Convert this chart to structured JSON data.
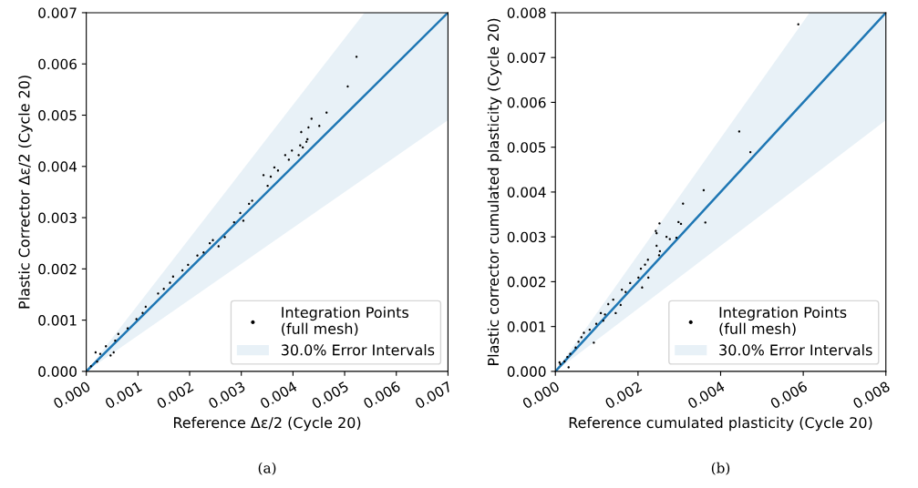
{
  "chart_data": [
    {
      "type": "scatter",
      "xlabel": "Reference Δε/2 (Cycle 20)",
      "ylabel": "Plastic Corrector Δε/2 (Cycle 20)",
      "annotations": [
        "(a)"
      ],
      "xlim": [
        0,
        0.007
      ],
      "ylim": [
        0,
        0.007
      ],
      "xticks": [
        {
          "value": 0,
          "label": "0.000"
        },
        0.001,
        0.002,
        0.003,
        0.004,
        0.005,
        0.006,
        0.007
      ],
      "yticks": [
        {
          "value": 0,
          "label": "0.000"
        },
        0.001,
        0.002,
        0.003,
        0.004,
        0.005,
        0.006,
        0.007
      ],
      "grid": false,
      "legend": "bottom right",
      "series": [
        {
          "type": "line",
          "name": "30.0% Error Intervals",
          "color": "#1f77b4",
          "x": [
            0,
            0.0035,
            0.005385,
            0.007
          ],
          "values": [
            0,
            0.0035,
            0.005385,
            0.007
          ],
          "lower": [
            0,
            0.00245,
            0.00377,
            0.0049
          ],
          "upper": [
            0,
            0.00455,
            0.007,
            0.007
          ]
        },
        {
          "name": "Integration Points\n(full mesh)",
          "color": "#000000",
          "marker": "circle",
          "x": [
            0.00523,
            0.00506,
            0.00465,
            0.00436,
            0.0043,
            0.00451,
            0.00416,
            0.00428,
            0.00426,
            0.00414,
            0.00419,
            0.00385,
            0.00398,
            0.00392,
            0.00411,
            0.00364,
            0.00371,
            0.00343,
            0.00357,
            0.00351,
            0.00304,
            0.00315,
            0.00298,
            0.00268,
            0.00256,
            0.00245,
            0.00227,
            0.00215,
            0.00197,
            0.00168,
            0.00162,
            0.00139,
            0.00115,
            0.00109,
            0.00097,
            0.0008,
            0.00062,
            0.00056,
            0.00053,
            0.00047,
            0.00038,
            0.00027,
            0.00021,
            9e-05,
            0.00018,
            0.00321,
            0.00286,
            0.00239,
            0.00186,
            0.0015
          ],
          "values": [
            0.00614,
            0.00556,
            0.00505,
            0.00493,
            0.00476,
            0.00479,
            0.00467,
            0.00453,
            0.00448,
            0.00441,
            0.00437,
            0.00422,
            0.00431,
            0.00413,
            0.00422,
            0.00398,
            0.00392,
            0.00383,
            0.0038,
            0.00362,
            0.00294,
            0.00327,
            0.00309,
            0.00262,
            0.00244,
            0.00256,
            0.00232,
            0.00226,
            0.00208,
            0.00185,
            0.00173,
            0.00152,
            0.00126,
            0.00114,
            0.00102,
            0.00084,
            0.00073,
            0.0006,
            0.00037,
            0.00031,
            0.00049,
            0.00034,
            0.00019,
            0.0001,
            0.00037,
            0.00333,
            0.00291,
            0.0025,
            0.00197,
            0.00161
          ]
        }
      ]
    },
    {
      "type": "scatter",
      "xlabel": "Reference cumulated plasticity (Cycle 20)",
      "ylabel": "Plastic corrector cumulated plasticity (Cycle 20)",
      "annotations": [
        "(b)"
      ],
      "xlim": [
        0,
        0.008
      ],
      "ylim": [
        0,
        0.008
      ],
      "xticks": [
        {
          "value": 0,
          "label": "0.000"
        },
        0.002,
        0.004,
        0.006,
        0.008
      ],
      "yticks": [
        {
          "value": 0,
          "label": "0.000"
        },
        0.001,
        0.002,
        0.003,
        0.004,
        0.005,
        0.006,
        0.007,
        0.008
      ],
      "grid": false,
      "legend": "bottom right",
      "series": [
        {
          "type": "line",
          "name": "30.0% Error Intervals",
          "color": "#1f77b4",
          "x": [
            0,
            0.004,
            0.006154,
            0.008
          ],
          "values": [
            0,
            0.004,
            0.006154,
            0.008
          ],
          "lower": [
            0,
            0.0028,
            0.004308,
            0.0056
          ],
          "upper": [
            0,
            0.0052,
            0.008,
            0.008
          ]
        },
        {
          "name": "Integration Points\n(full mesh)",
          "color": "#000000",
          "marker": "circle",
          "x": [
            0.00588,
            0.00445,
            0.00472,
            0.00359,
            0.00363,
            0.00309,
            0.00298,
            0.00304,
            0.00293,
            0.00277,
            0.00269,
            0.00252,
            0.00243,
            0.00245,
            0.00245,
            0.00253,
            0.00251,
            0.00224,
            0.00217,
            0.00207,
            0.00201,
            0.0021,
            0.00225,
            0.00181,
            0.00161,
            0.0017,
            0.00158,
            0.00146,
            0.0014,
            0.00128,
            0.0012,
            0.0011,
            0.00093,
            0.00083,
            0.00069,
            0.00056,
            0.00049,
            0.00036,
            0.00029,
            0.00022,
            0.00012,
            0.00032,
            0.0001,
            0.00063,
            0.00099,
            0.00116
          ],
          "values": [
            0.00774,
            0.00535,
            0.00489,
            0.00404,
            0.00332,
            0.00374,
            0.00333,
            0.00329,
            0.00298,
            0.00295,
            0.003,
            0.0033,
            0.00313,
            0.00308,
            0.0028,
            0.00268,
            0.00259,
            0.00249,
            0.00238,
            0.00229,
            0.00209,
            0.00187,
            0.00209,
            0.00197,
            0.00182,
            0.00177,
            0.00148,
            0.0013,
            0.0016,
            0.0015,
            0.00127,
            0.0013,
            0.00064,
            0.00093,
            0.00086,
            0.00066,
            0.00053,
            0.00039,
            0.00032,
            0.00022,
            0.00016,
            9e-05,
            0.0002,
            0.00076,
            0.00106,
            0.00113
          ]
        }
      ]
    }
  ]
}
